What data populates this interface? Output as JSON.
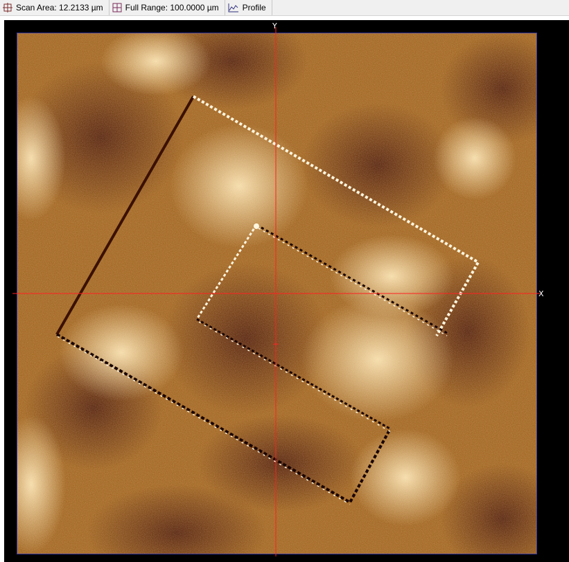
{
  "toolbar": {
    "scan_area": {
      "label": "Scan Area: 12.2133 µm",
      "icon": "crosshair-icon"
    },
    "full_range": {
      "label": "Full Range: 100.0000 µm",
      "icon": "grid-icon"
    },
    "profile": {
      "label": "Profile",
      "icon": "profile-chart-icon"
    }
  },
  "viewer": {
    "x_axis_label": "X",
    "y_axis_label": "Y",
    "colors": {
      "background": "#000000",
      "crosshair": "#ff2020",
      "frame": "#3a3aa0",
      "height_low": "#4a1400",
      "height_mid": "#a5651c",
      "height_high": "#fff0c8"
    }
  }
}
